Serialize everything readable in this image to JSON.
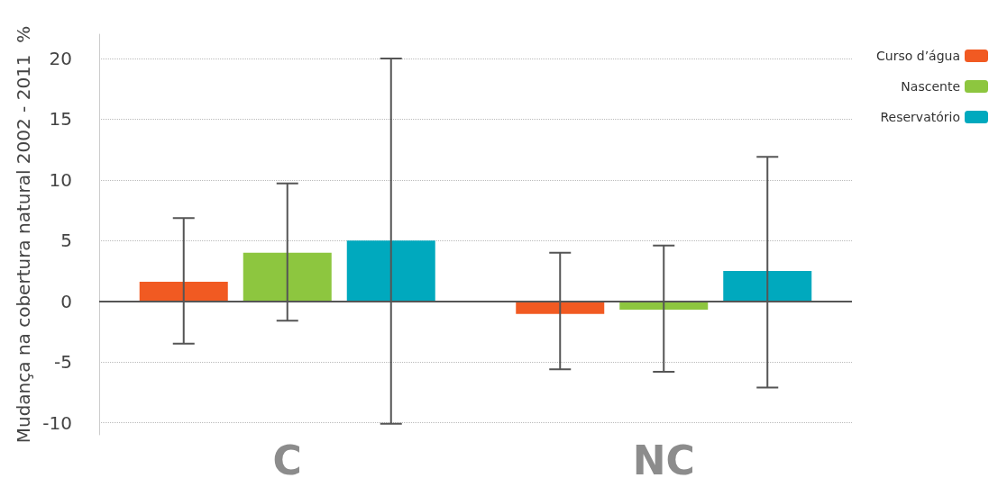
{
  "chart_data": {
    "type": "bar",
    "ylabel": "Mudança na cobertura natural 2002 - 2011  %",
    "categories": [
      "C",
      "NC"
    ],
    "series": [
      {
        "name": "Curso d’água",
        "color": "#f15a22",
        "values": [
          1.6,
          -1.05
        ],
        "errors": [
          [
            -3.5,
            6.85
          ],
          [
            -5.6,
            4.0
          ]
        ]
      },
      {
        "name": "Nascente",
        "color": "#8dc63f",
        "values": [
          4.0,
          -0.7
        ],
        "errors": [
          [
            -1.6,
            9.7
          ],
          [
            -5.8,
            4.6
          ]
        ]
      },
      {
        "name": "Reservatório",
        "color": "#00a9be",
        "values": [
          5.0,
          2.5
        ],
        "errors": [
          [
            -10.1,
            20.0
          ],
          [
            -7.1,
            11.9
          ]
        ]
      }
    ],
    "ylim": [
      -11,
      22
    ],
    "yticks": [
      -10,
      -5,
      0,
      5,
      10,
      15,
      20
    ],
    "grid": "y",
    "legend": "top right"
  }
}
